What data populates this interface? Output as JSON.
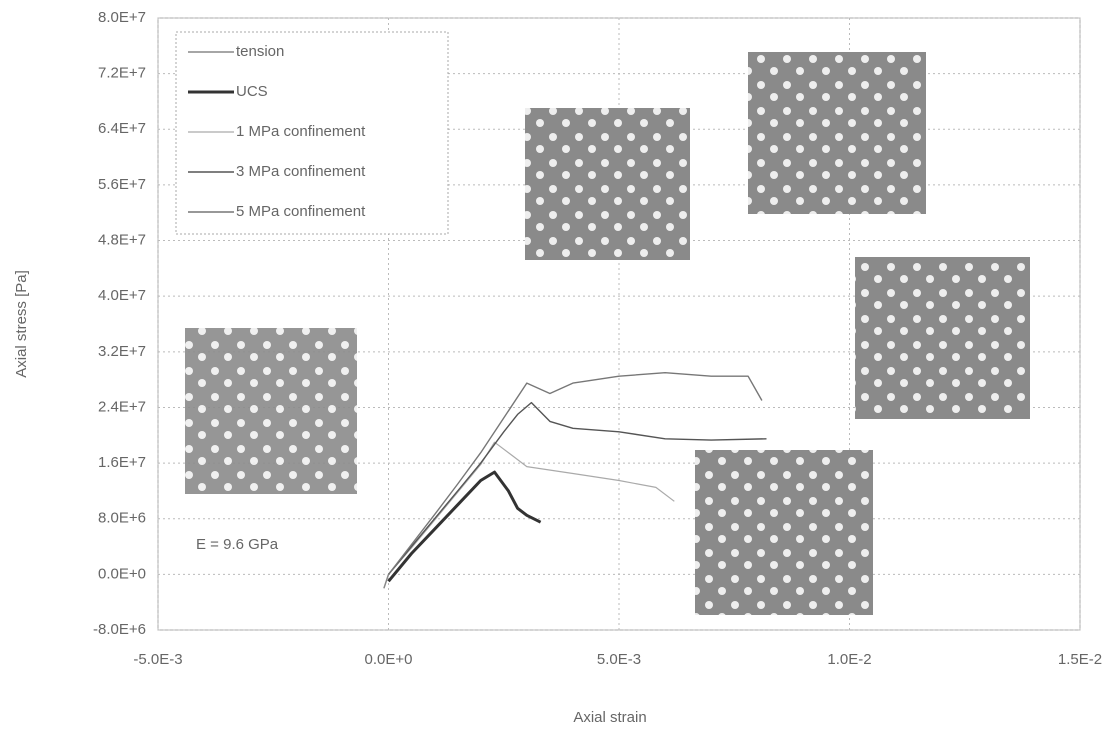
{
  "chart_data": {
    "type": "line",
    "xlabel": "Axial strain",
    "ylabel": "Axial stress [Pa]",
    "annotation": "E = 9.6 GPa",
    "xlim": [
      -0.005,
      0.015
    ],
    "ylim": [
      -8000000,
      80000000
    ],
    "xticks": [
      {
        "value": -0.005,
        "label": "-5.0E-3"
      },
      {
        "value": 0,
        "label": "0.0E+0"
      },
      {
        "value": 0.005,
        "label": "5.0E-3"
      },
      {
        "value": 0.01,
        "label": "1.0E-2"
      },
      {
        "value": 0.015,
        "label": "1.5E-2"
      }
    ],
    "yticks": [
      {
        "value": -8000000,
        "label": "-8.0E+6"
      },
      {
        "value": 0,
        "label": "0.0E+0"
      },
      {
        "value": 8000000,
        "label": "8.0E+6"
      },
      {
        "value": 16000000,
        "label": "1.6E+7"
      },
      {
        "value": 24000000,
        "label": "2.4E+7"
      },
      {
        "value": 32000000,
        "label": "3.2E+7"
      },
      {
        "value": 40000000,
        "label": "4.0E+7"
      },
      {
        "value": 48000000,
        "label": "4.8E+7"
      },
      {
        "value": 56000000,
        "label": "5.6E+7"
      },
      {
        "value": 64000000,
        "label": "6.4E+7"
      },
      {
        "value": 72000000,
        "label": "7.2E+7"
      },
      {
        "value": 80000000,
        "label": "8.0E+7"
      }
    ],
    "grid": true,
    "legend": "upper left",
    "series": [
      {
        "name": "tension",
        "color": "#888888",
        "width": 1.5,
        "x": [
          0,
          -0.0001
        ],
        "values": [
          0,
          -2000000
        ]
      },
      {
        "name": "UCS",
        "color": "#333333",
        "width": 3,
        "x": [
          0,
          0.0005,
          0.001,
          0.0015,
          0.002,
          0.0023,
          0.0026,
          0.0028,
          0.003,
          0.0033
        ],
        "values": [
          -1000000,
          3000000,
          6500000,
          10000000,
          13500000,
          14700000,
          12000000,
          9500000,
          8500000,
          7500000
        ]
      },
      {
        "name": "1 MPa confinement",
        "color": "#aaaaaa",
        "width": 1.2,
        "x": [
          0,
          0.0005,
          0.001,
          0.0015,
          0.002,
          0.0023,
          0.0027,
          0.003,
          0.004,
          0.005,
          0.0058,
          0.0062
        ],
        "values": [
          0,
          3800000,
          7800000,
          11800000,
          15800000,
          19000000,
          17000000,
          15500000,
          14500000,
          13500000,
          12500000,
          10500000
        ]
      },
      {
        "name": "3 MPa confinement",
        "color": "#555555",
        "width": 1.4,
        "x": [
          0,
          0.0005,
          0.001,
          0.0015,
          0.002,
          0.0025,
          0.0028,
          0.0031,
          0.0035,
          0.004,
          0.005,
          0.006,
          0.007,
          0.0082
        ],
        "values": [
          0,
          4000000,
          8000000,
          12000000,
          16000000,
          20500000,
          23000000,
          24700000,
          22000000,
          21000000,
          20500000,
          19500000,
          19300000,
          19500000
        ]
      },
      {
        "name": "5 MPa confinement",
        "color": "#777777",
        "width": 1.4,
        "x": [
          0,
          0.0005,
          0.001,
          0.0015,
          0.002,
          0.0025,
          0.003,
          0.0035,
          0.004,
          0.005,
          0.006,
          0.007,
          0.0078,
          0.0081
        ],
        "values": [
          0,
          4300000,
          8600000,
          13000000,
          17500000,
          22500000,
          27500000,
          26000000,
          27500000,
          28500000,
          29000000,
          28500000,
          28500000,
          25000000
        ]
      }
    ]
  }
}
